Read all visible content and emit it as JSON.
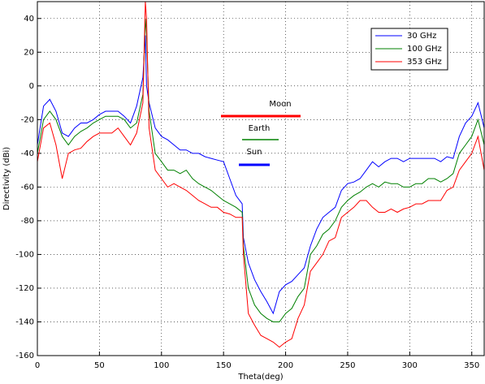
{
  "chart_data": {
    "type": "line",
    "x_label": "Theta(deg)",
    "y_label": "Directivity (dBi)",
    "x": [
      0,
      5,
      10,
      15,
      20,
      25,
      30,
      35,
      40,
      45,
      50,
      55,
      60,
      65,
      70,
      75,
      80,
      85,
      87,
      88,
      90,
      95,
      100,
      105,
      110,
      115,
      120,
      125,
      130,
      135,
      140,
      145,
      150,
      155,
      160,
      165,
      166,
      170,
      175,
      180,
      185,
      190,
      195,
      200,
      205,
      210,
      215,
      220,
      225,
      230,
      235,
      240,
      245,
      250,
      255,
      260,
      265,
      270,
      275,
      280,
      285,
      290,
      295,
      300,
      305,
      310,
      315,
      320,
      325,
      330,
      335,
      340,
      345,
      350,
      355,
      360
    ],
    "series": [
      {
        "name": "30 GHz",
        "color": "#0000ff",
        "values": [
          -35,
          -12,
          -8,
          -15,
          -28,
          -30,
          -25,
          -22,
          -22,
          -20,
          -17,
          -15,
          -15,
          -15,
          -18,
          -22,
          -12,
          5,
          30,
          0,
          -10,
          -25,
          -30,
          -32,
          -35,
          -38,
          -38,
          -40,
          -40,
          -42,
          -43,
          -44,
          -45,
          -55,
          -65,
          -70,
          -90,
          -105,
          -115,
          -122,
          -128,
          -135,
          -122,
          -118,
          -116,
          -112,
          -108,
          -95,
          -85,
          -78,
          -75,
          -72,
          -62,
          -58,
          -57,
          -55,
          -50,
          -45,
          -48,
          -45,
          -43,
          -43,
          -45,
          -43,
          -43,
          -43,
          -43,
          -43,
          -45,
          -42,
          -43,
          -30,
          -22,
          -18,
          -10,
          -25
        ]
      },
      {
        "name": "100 GHz",
        "color": "#008000",
        "values": [
          -40,
          -20,
          -15,
          -20,
          -30,
          -35,
          -30,
          -27,
          -25,
          -22,
          -20,
          -18,
          -18,
          -18,
          -20,
          -25,
          -22,
          -5,
          40,
          30,
          -15,
          -40,
          -45,
          -50,
          -50,
          -52,
          -50,
          -55,
          -58,
          -60,
          -62,
          -65,
          -68,
          -70,
          -72,
          -75,
          -95,
          -120,
          -130,
          -135,
          -138,
          -140,
          -140,
          -135,
          -132,
          -125,
          -120,
          -100,
          -95,
          -88,
          -85,
          -80,
          -72,
          -68,
          -65,
          -63,
          -60,
          -58,
          -60,
          -57,
          -58,
          -58,
          -60,
          -60,
          -58,
          -58,
          -55,
          -55,
          -57,
          -55,
          -52,
          -40,
          -35,
          -30,
          -20,
          -35
        ]
      },
      {
        "name": "353 GHz",
        "color": "#ff0000",
        "values": [
          -45,
          -25,
          -22,
          -35,
          -55,
          -40,
          -38,
          -37,
          -33,
          -30,
          -28,
          -28,
          -28,
          -25,
          -30,
          -35,
          -28,
          -10,
          50,
          40,
          -25,
          -50,
          -55,
          -60,
          -58,
          -60,
          -62,
          -65,
          -68,
          -70,
          -72,
          -72,
          -75,
          -76,
          -78,
          -78,
          -100,
          -135,
          -142,
          -148,
          -150,
          -152,
          -155,
          -152,
          -150,
          -138,
          -130,
          -110,
          -105,
          -100,
          -92,
          -90,
          -78,
          -75,
          -72,
          -68,
          -68,
          -72,
          -75,
          -75,
          -73,
          -75,
          -73,
          -72,
          -70,
          -70,
          -68,
          -68,
          -68,
          -62,
          -60,
          -50,
          -45,
          -40,
          -30,
          -50
        ]
      }
    ],
    "annotations": [
      {
        "text": "Moon",
        "color": "#ff0000"
      },
      {
        "text": "Earth",
        "color": "#008000"
      },
      {
        "text": "Sun",
        "color": "#0000ff"
      }
    ],
    "xlim": [
      0,
      360
    ],
    "xticks": [
      0,
      50,
      100,
      150,
      200,
      250,
      300,
      350
    ],
    "ylim": [
      -160,
      50
    ],
    "yticks": [
      -160,
      -140,
      -120,
      -100,
      -80,
      -60,
      -40,
      -20,
      0,
      20,
      40
    ],
    "grid": true,
    "legend_loc": "upper right"
  }
}
